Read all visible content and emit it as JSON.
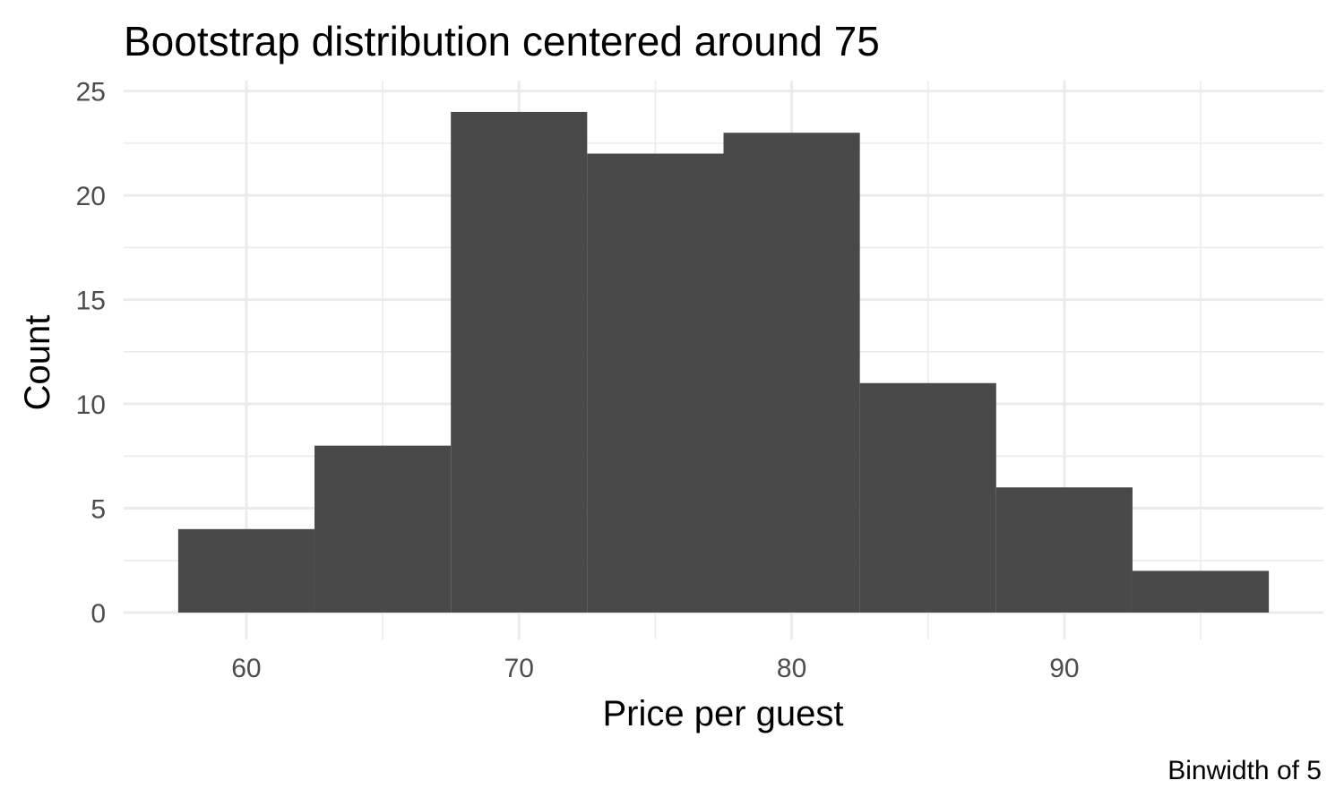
{
  "chart_data": {
    "type": "bar",
    "title": "Bootstrap distribution centered around 75",
    "xlabel": "Price per guest",
    "ylabel": "Count",
    "caption": "Binwidth of 5",
    "binwidth": 5,
    "bins": [
      {
        "start": 57.5,
        "end": 62.5,
        "count": 4
      },
      {
        "start": 62.5,
        "end": 67.5,
        "count": 8
      },
      {
        "start": 67.5,
        "end": 72.5,
        "count": 24
      },
      {
        "start": 72.5,
        "end": 77.5,
        "count": 22
      },
      {
        "start": 77.5,
        "end": 82.5,
        "count": 23
      },
      {
        "start": 82.5,
        "end": 87.5,
        "count": 11
      },
      {
        "start": 87.5,
        "end": 92.5,
        "count": 6
      },
      {
        "start": 92.5,
        "end": 97.5,
        "count": 2
      }
    ],
    "xlim": [
      55.5,
      99.5
    ],
    "ylim": [
      0,
      25.5
    ],
    "xticks": [
      60,
      70,
      80,
      90
    ],
    "yticks": [
      0,
      5,
      10,
      15,
      20,
      25
    ],
    "xticks_minor": [
      65,
      75,
      85,
      95
    ],
    "yticks_minor": [
      2.5,
      7.5,
      12.5,
      17.5,
      22.5
    ],
    "grid": true,
    "bar_color": "#494949",
    "grid_color": "#ebebeb"
  }
}
